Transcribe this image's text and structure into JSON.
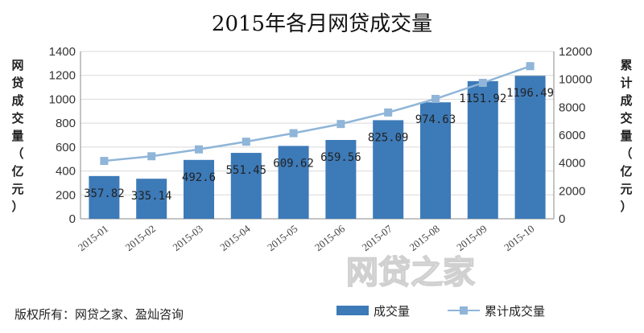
{
  "chart_data": {
    "type": "bar",
    "title": "2015年各月网贷成交量",
    "categories": [
      "2015-01",
      "2015-02",
      "2015-03",
      "2015-04",
      "2015-05",
      "2015-06",
      "2015-07",
      "2015-08",
      "2015-09",
      "2015-10"
    ],
    "series": [
      {
        "name": "成交量",
        "type": "bar",
        "axis": "left",
        "color": "#3d7ab8",
        "values": [
          357.82,
          335.14,
          492.6,
          551.45,
          609.62,
          659.56,
          825.09,
          974.63,
          1151.92,
          1196.49
        ],
        "labels": [
          "357.82",
          "335.14",
          "492.6",
          "551.45",
          "609.62",
          "659.56",
          "825.09",
          "974.63",
          "1151.92",
          "1196.49"
        ]
      },
      {
        "name": "累计成交量",
        "type": "line",
        "axis": "right",
        "color": "#8fb5d8",
        "values": [
          4150,
          4485,
          4978,
          5529,
          6139,
          6799,
          7624,
          8598,
          9750,
          10947
        ]
      }
    ],
    "ylabel_left": "网贷成交量（亿元）",
    "ylabel_right": "累计成交量（亿元）",
    "ylim_left": [
      0,
      1400
    ],
    "yticks_left": [
      0,
      200,
      400,
      600,
      800,
      1000,
      1200,
      1400
    ],
    "ylim_right": [
      0,
      12000
    ],
    "yticks_right": [
      0,
      2000,
      4000,
      6000,
      8000,
      10000,
      12000
    ],
    "grid": true,
    "legend_position": "bottom-right"
  },
  "footer": {
    "copyright": "版权所有：网贷之家、盈灿咨询"
  },
  "watermark": {
    "text": "网贷之家"
  }
}
